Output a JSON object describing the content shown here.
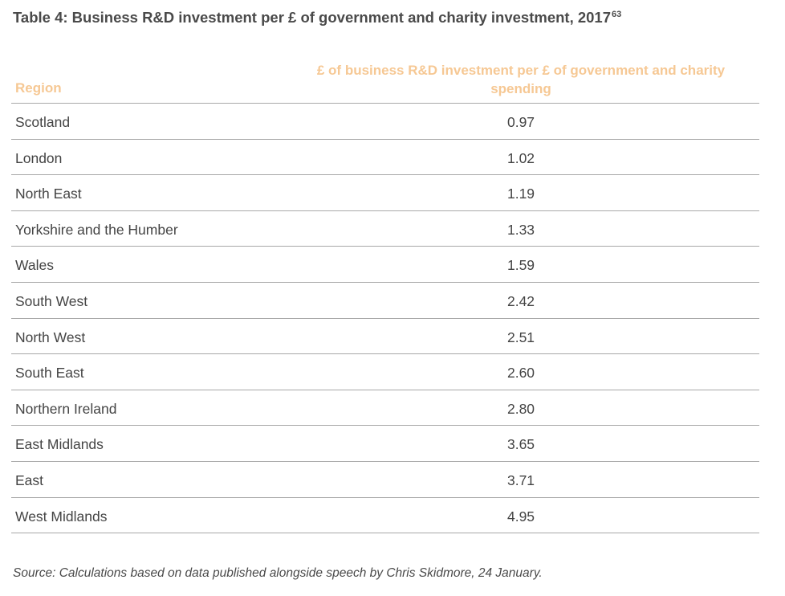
{
  "table": {
    "title": "Table 4: Business R&D investment per £ of government and charity investment, 2017",
    "footnote_ref": "63",
    "headers": {
      "region": "Region",
      "value": "£ of business R&D investment per £ of government and charity spending"
    },
    "rows": [
      {
        "region": "Scotland",
        "value": "0.97"
      },
      {
        "region": "London",
        "value": "1.02"
      },
      {
        "region": "North East",
        "value": "1.19"
      },
      {
        "region": "Yorkshire and the Humber",
        "value": "1.33"
      },
      {
        "region": "Wales",
        "value": "1.59"
      },
      {
        "region": "South West",
        "value": "2.42"
      },
      {
        "region": "North West",
        "value": "2.51"
      },
      {
        "region": "South East",
        "value": "2.60"
      },
      {
        "region": "Northern Ireland",
        "value": "2.80"
      },
      {
        "region": "East Midlands",
        "value": "3.65"
      },
      {
        "region": "East",
        "value": "3.71"
      },
      {
        "region": "West Midlands",
        "value": "4.95"
      }
    ],
    "source": "Source: Calculations based on data published alongside speech by Chris Skidmore, 24 January."
  },
  "colors": {
    "header_text": "#f6c894",
    "body_text": "#444444",
    "rule": "#a8a8a8"
  }
}
